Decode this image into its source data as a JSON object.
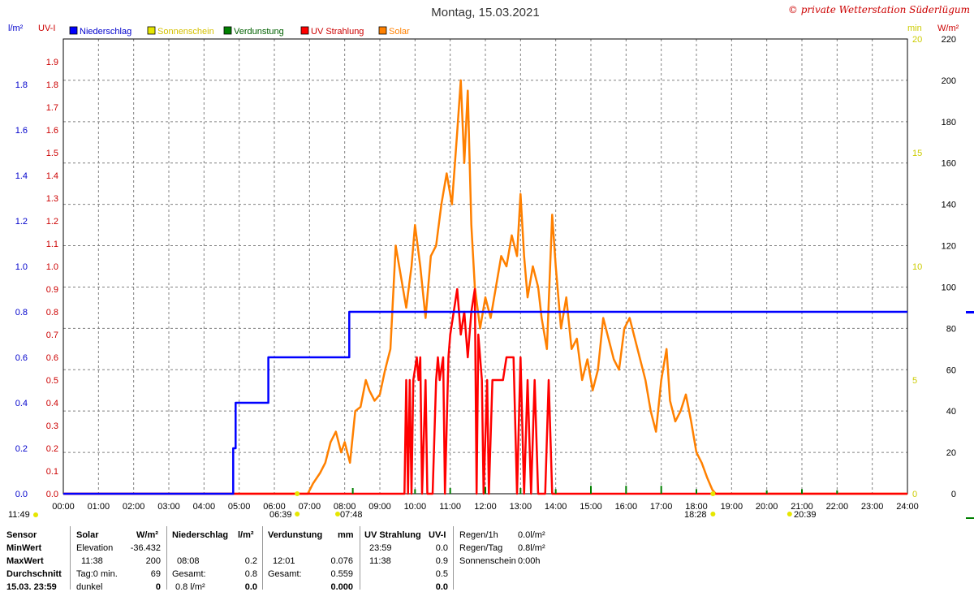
{
  "header": {
    "title": "Montag, 15.03.2021",
    "copyright": "© private Wetterstation Süderlügum"
  },
  "units": {
    "left_outer": "l/m²",
    "left_inner": "UV-I",
    "right_inner": "min",
    "right_outer": "W/m²"
  },
  "legend": [
    {
      "label": "Niederschlag",
      "color": "#0000ff"
    },
    {
      "label": "Sonnenschein",
      "color": "#e6e600"
    },
    {
      "label": "Verdunstung",
      "color": "#008000"
    },
    {
      "label": "UV Strahlung",
      "color": "#ff0000"
    },
    {
      "label": "Solar",
      "color": "#ff8000"
    }
  ],
  "colors": {
    "grid": "#808080",
    "rain": "#0000ff",
    "sun": "#e6e600",
    "evap": "#008000",
    "uv": "#ff0000",
    "solar": "#ff8000",
    "uv_axis": "#cc0000",
    "min_axis": "#cccc00"
  },
  "time_markers": {
    "bottom_left": "11:49",
    "sunrise": "06:39",
    "sun_start": "07:48",
    "sunset": "18:28",
    "night": "20:39"
  },
  "chart_data": {
    "type": "line",
    "title": "Montag, 15.03.2021",
    "x_ticks": [
      "00:00",
      "01:00",
      "02:00",
      "03:00",
      "04:00",
      "05:00",
      "06:00",
      "07:00",
      "08:00",
      "09:00",
      "10:00",
      "11:00",
      "12:00",
      "13:00",
      "14:00",
      "15:00",
      "16:00",
      "17:00",
      "18:00",
      "19:00",
      "20:00",
      "21:00",
      "22:00",
      "23:00",
      "24:00"
    ],
    "x_range_hours": [
      0,
      24
    ],
    "axes": {
      "rain_lm2": {
        "range": [
          0,
          2.0
        ],
        "ticks": [
          "0.0",
          "0.2",
          "0.4",
          "0.6",
          "0.8",
          "1.0",
          "1.2",
          "1.4",
          "1.6",
          "1.8"
        ]
      },
      "uv_index": {
        "range": [
          0,
          2.0
        ],
        "ticks": [
          "0.0",
          "0.1",
          "0.2",
          "0.3",
          "0.4",
          "0.5",
          "0.6",
          "0.7",
          "0.8",
          "0.9",
          "1.0",
          "1.1",
          "1.2",
          "1.3",
          "1.4",
          "1.5",
          "1.6",
          "1.7",
          "1.8",
          "1.9"
        ]
      },
      "sunshine_min": {
        "range": [
          0,
          20
        ],
        "ticks": [
          "0",
          "5",
          "10",
          "15",
          "20"
        ]
      },
      "solar_wm2": {
        "range": [
          0,
          220
        ],
        "ticks": [
          "0",
          "20",
          "40",
          "60",
          "80",
          "100",
          "120",
          "140",
          "160",
          "180",
          "200",
          "220"
        ]
      }
    },
    "grid": true,
    "series": [
      {
        "name": "Niederschlag",
        "unit": "l/m²",
        "step": true,
        "points": [
          [
            0,
            0
          ],
          [
            4.83,
            0
          ],
          [
            4.83,
            0.2
          ],
          [
            4.9,
            0.2
          ],
          [
            4.9,
            0.4
          ],
          [
            5.83,
            0.4
          ],
          [
            5.83,
            0.6
          ],
          [
            8.13,
            0.6
          ],
          [
            8.13,
            0.8
          ],
          [
            24,
            0.8
          ]
        ]
      },
      {
        "name": "UV Strahlung",
        "unit": "UV-I",
        "points": [
          [
            0,
            0
          ],
          [
            9.7,
            0
          ],
          [
            9.75,
            0.5
          ],
          [
            9.8,
            0.0
          ],
          [
            9.85,
            0.5
          ],
          [
            9.9,
            0
          ],
          [
            9.95,
            0.5
          ],
          [
            10.05,
            0.6
          ],
          [
            10.1,
            0.5
          ],
          [
            10.15,
            0.6
          ],
          [
            10.2,
            0.0
          ],
          [
            10.3,
            0.5
          ],
          [
            10.35,
            0.0
          ],
          [
            10.5,
            0.0
          ],
          [
            10.6,
            0.5
          ],
          [
            10.65,
            0.6
          ],
          [
            10.7,
            0.5
          ],
          [
            10.8,
            0.6
          ],
          [
            10.85,
            0.0
          ],
          [
            10.95,
            0.6
          ],
          [
            11.0,
            0.7
          ],
          [
            11.1,
            0.8
          ],
          [
            11.2,
            0.9
          ],
          [
            11.3,
            0.7
          ],
          [
            11.4,
            0.8
          ],
          [
            11.5,
            0.6
          ],
          [
            11.6,
            0.8
          ],
          [
            11.7,
            0.9
          ],
          [
            11.75,
            0.0
          ],
          [
            11.8,
            0.7
          ],
          [
            11.9,
            0.5
          ],
          [
            11.95,
            0.0
          ],
          [
            12.05,
            0.5
          ],
          [
            12.1,
            0.0
          ],
          [
            12.2,
            0.5
          ],
          [
            12.3,
            0.5
          ],
          [
            12.5,
            0.5
          ],
          [
            12.6,
            0.6
          ],
          [
            12.8,
            0.6
          ],
          [
            12.9,
            0.0
          ],
          [
            13.0,
            0.6
          ],
          [
            13.1,
            0.0
          ],
          [
            13.2,
            0.5
          ],
          [
            13.3,
            0.0
          ],
          [
            13.4,
            0.5
          ],
          [
            13.5,
            0.0
          ],
          [
            13.7,
            0.0
          ],
          [
            13.8,
            0.5
          ],
          [
            13.9,
            0.0
          ],
          [
            24,
            0
          ]
        ]
      },
      {
        "name": "Solar",
        "unit": "W/m²",
        "points": [
          [
            0,
            0
          ],
          [
            6.95,
            0
          ],
          [
            7.1,
            5
          ],
          [
            7.3,
            10
          ],
          [
            7.45,
            15
          ],
          [
            7.6,
            25
          ],
          [
            7.75,
            30
          ],
          [
            7.9,
            20
          ],
          [
            8.0,
            25
          ],
          [
            8.15,
            15
          ],
          [
            8.3,
            40
          ],
          [
            8.45,
            42
          ],
          [
            8.6,
            55
          ],
          [
            8.7,
            50
          ],
          [
            8.85,
            45
          ],
          [
            9.0,
            48
          ],
          [
            9.15,
            60
          ],
          [
            9.3,
            70
          ],
          [
            9.45,
            120
          ],
          [
            9.6,
            105
          ],
          [
            9.75,
            90
          ],
          [
            9.9,
            110
          ],
          [
            10.0,
            130
          ],
          [
            10.15,
            110
          ],
          [
            10.3,
            85
          ],
          [
            10.45,
            115
          ],
          [
            10.6,
            120
          ],
          [
            10.75,
            140
          ],
          [
            10.9,
            155
          ],
          [
            11.05,
            140
          ],
          [
            11.2,
            175
          ],
          [
            11.3,
            200
          ],
          [
            11.4,
            160
          ],
          [
            11.5,
            195
          ],
          [
            11.6,
            130
          ],
          [
            11.7,
            100
          ],
          [
            11.85,
            80
          ],
          [
            12.0,
            95
          ],
          [
            12.15,
            85
          ],
          [
            12.3,
            100
          ],
          [
            12.45,
            115
          ],
          [
            12.6,
            110
          ],
          [
            12.75,
            125
          ],
          [
            12.9,
            115
          ],
          [
            13.0,
            145
          ],
          [
            13.1,
            115
          ],
          [
            13.2,
            95
          ],
          [
            13.35,
            110
          ],
          [
            13.5,
            100
          ],
          [
            13.6,
            85
          ],
          [
            13.75,
            70
          ],
          [
            13.9,
            135
          ],
          [
            14.0,
            110
          ],
          [
            14.15,
            80
          ],
          [
            14.3,
            95
          ],
          [
            14.45,
            70
          ],
          [
            14.6,
            75
          ],
          [
            14.75,
            55
          ],
          [
            14.9,
            65
          ],
          [
            15.05,
            50
          ],
          [
            15.2,
            60
          ],
          [
            15.35,
            85
          ],
          [
            15.5,
            75
          ],
          [
            15.65,
            65
          ],
          [
            15.8,
            60
          ],
          [
            15.95,
            80
          ],
          [
            16.1,
            85
          ],
          [
            16.25,
            75
          ],
          [
            16.4,
            65
          ],
          [
            16.55,
            55
          ],
          [
            16.7,
            40
          ],
          [
            16.85,
            30
          ],
          [
            17.0,
            55
          ],
          [
            17.15,
            70
          ],
          [
            17.25,
            45
          ],
          [
            17.4,
            35
          ],
          [
            17.55,
            40
          ],
          [
            17.7,
            48
          ],
          [
            17.85,
            35
          ],
          [
            18.0,
            20
          ],
          [
            18.15,
            15
          ],
          [
            18.3,
            8
          ],
          [
            18.45,
            2
          ],
          [
            18.55,
            0
          ],
          [
            24,
            0
          ]
        ]
      },
      {
        "name": "Verdunstung",
        "unit": "min",
        "points": [
          [
            8.23,
            0.25
          ],
          [
            10.0,
            0.2
          ],
          [
            11.0,
            0.25
          ],
          [
            12.0,
            0.3
          ],
          [
            13.0,
            0.25
          ],
          [
            14.0,
            0.2
          ],
          [
            15.0,
            0.35
          ],
          [
            16.0,
            0.35
          ],
          [
            17.0,
            0.35
          ],
          [
            18.0,
            0.2
          ],
          [
            20.0,
            0.15
          ],
          [
            21.0,
            0.2
          ],
          [
            22.0,
            0.15
          ]
        ]
      },
      {
        "name": "Sonnenschein",
        "unit": "min",
        "points": []
      }
    ]
  },
  "table": {
    "sensor": {
      "header": "Sensor",
      "rows": [
        "MinWert",
        "MaxWert",
        "Durchschnitt",
        "15.03. 23:59"
      ]
    },
    "solar": {
      "header": "Solar",
      "unit": "W/m²",
      "rows": [
        [
          "Elevation",
          "-36.432"
        ],
        [
          "11:38",
          "200"
        ],
        [
          "Tag:0 min.",
          "69"
        ],
        [
          "dunkel",
          "0"
        ]
      ]
    },
    "rain": {
      "header": "Niederschlag",
      "unit": "l/m²",
      "rows": [
        [
          "",
          ""
        ],
        [
          "08:08",
          "0.2"
        ],
        [
          "Gesamt:",
          "0.8"
        ],
        [
          "0.8 l/m²",
          "0.0"
        ]
      ]
    },
    "evap": {
      "header": "Verdunstung",
      "unit": "mm",
      "rows": [
        [
          "",
          ""
        ],
        [
          "12:01",
          "0.076"
        ],
        [
          "Gesamt:",
          "0.559"
        ],
        [
          "",
          "0.000"
        ]
      ]
    },
    "uv": {
      "header": "UV Strahlung",
      "unit": "UV-I",
      "rows": [
        [
          "23:59",
          "0.0"
        ],
        [
          "11:38",
          "0.9"
        ],
        [
          "",
          "0.5"
        ],
        [
          "",
          "0.0"
        ]
      ]
    },
    "summary": {
      "rows": [
        [
          "Regen/1h",
          "0.0l/m²"
        ],
        [
          "Regen/Tag",
          "0.8l/m²"
        ],
        [
          "Sonnenschein",
          "0:00h"
        ]
      ]
    }
  }
}
